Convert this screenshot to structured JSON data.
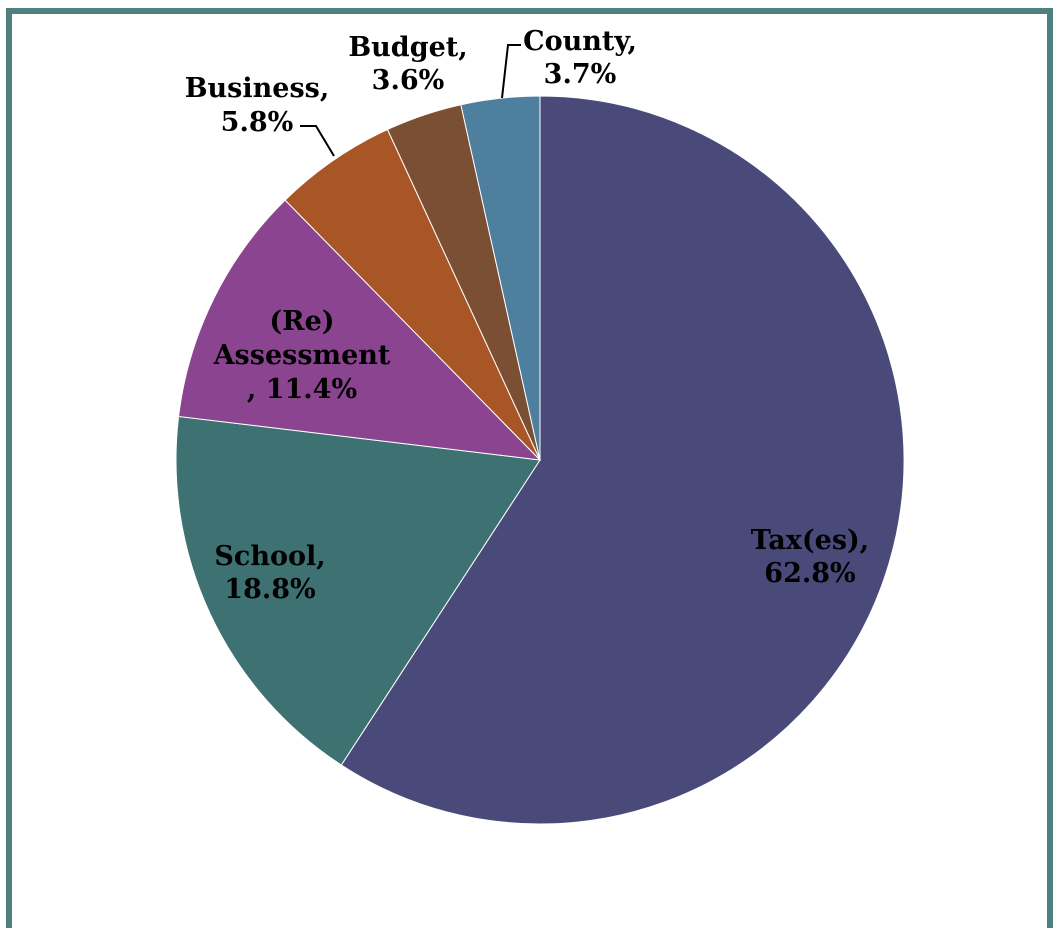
{
  "chart_data": {
    "type": "pie",
    "title": "",
    "slices": [
      {
        "name": "Tax(es)",
        "value": 62.8,
        "label_lines": [
          "Tax(es),",
          "62.8%"
        ],
        "color": "#4a4a7a"
      },
      {
        "name": "School",
        "value": 18.8,
        "label_lines": [
          "School,",
          "18.8%"
        ],
        "color": "#3d7172"
      },
      {
        "name": "(Re) Assessment",
        "value": 11.4,
        "label_lines": [
          "(Re)",
          "Assessment",
          ", 11.4%"
        ],
        "color": "#8b448f"
      },
      {
        "name": "Business",
        "value": 5.8,
        "label_lines": [
          "Business,",
          "5.8%"
        ],
        "color": "#a95626"
      },
      {
        "name": "Budget",
        "value": 3.6,
        "label_lines": [
          "Budget,",
          "3.6%"
        ],
        "color": "#7a4f33"
      },
      {
        "name": "County",
        "value": 3.7,
        "label_lines": [
          "County,",
          "3.7%"
        ],
        "color": "#4f7f9e"
      }
    ],
    "start_angle_deg": 0,
    "direction": "clockwise",
    "grid": false,
    "legend": "none"
  }
}
